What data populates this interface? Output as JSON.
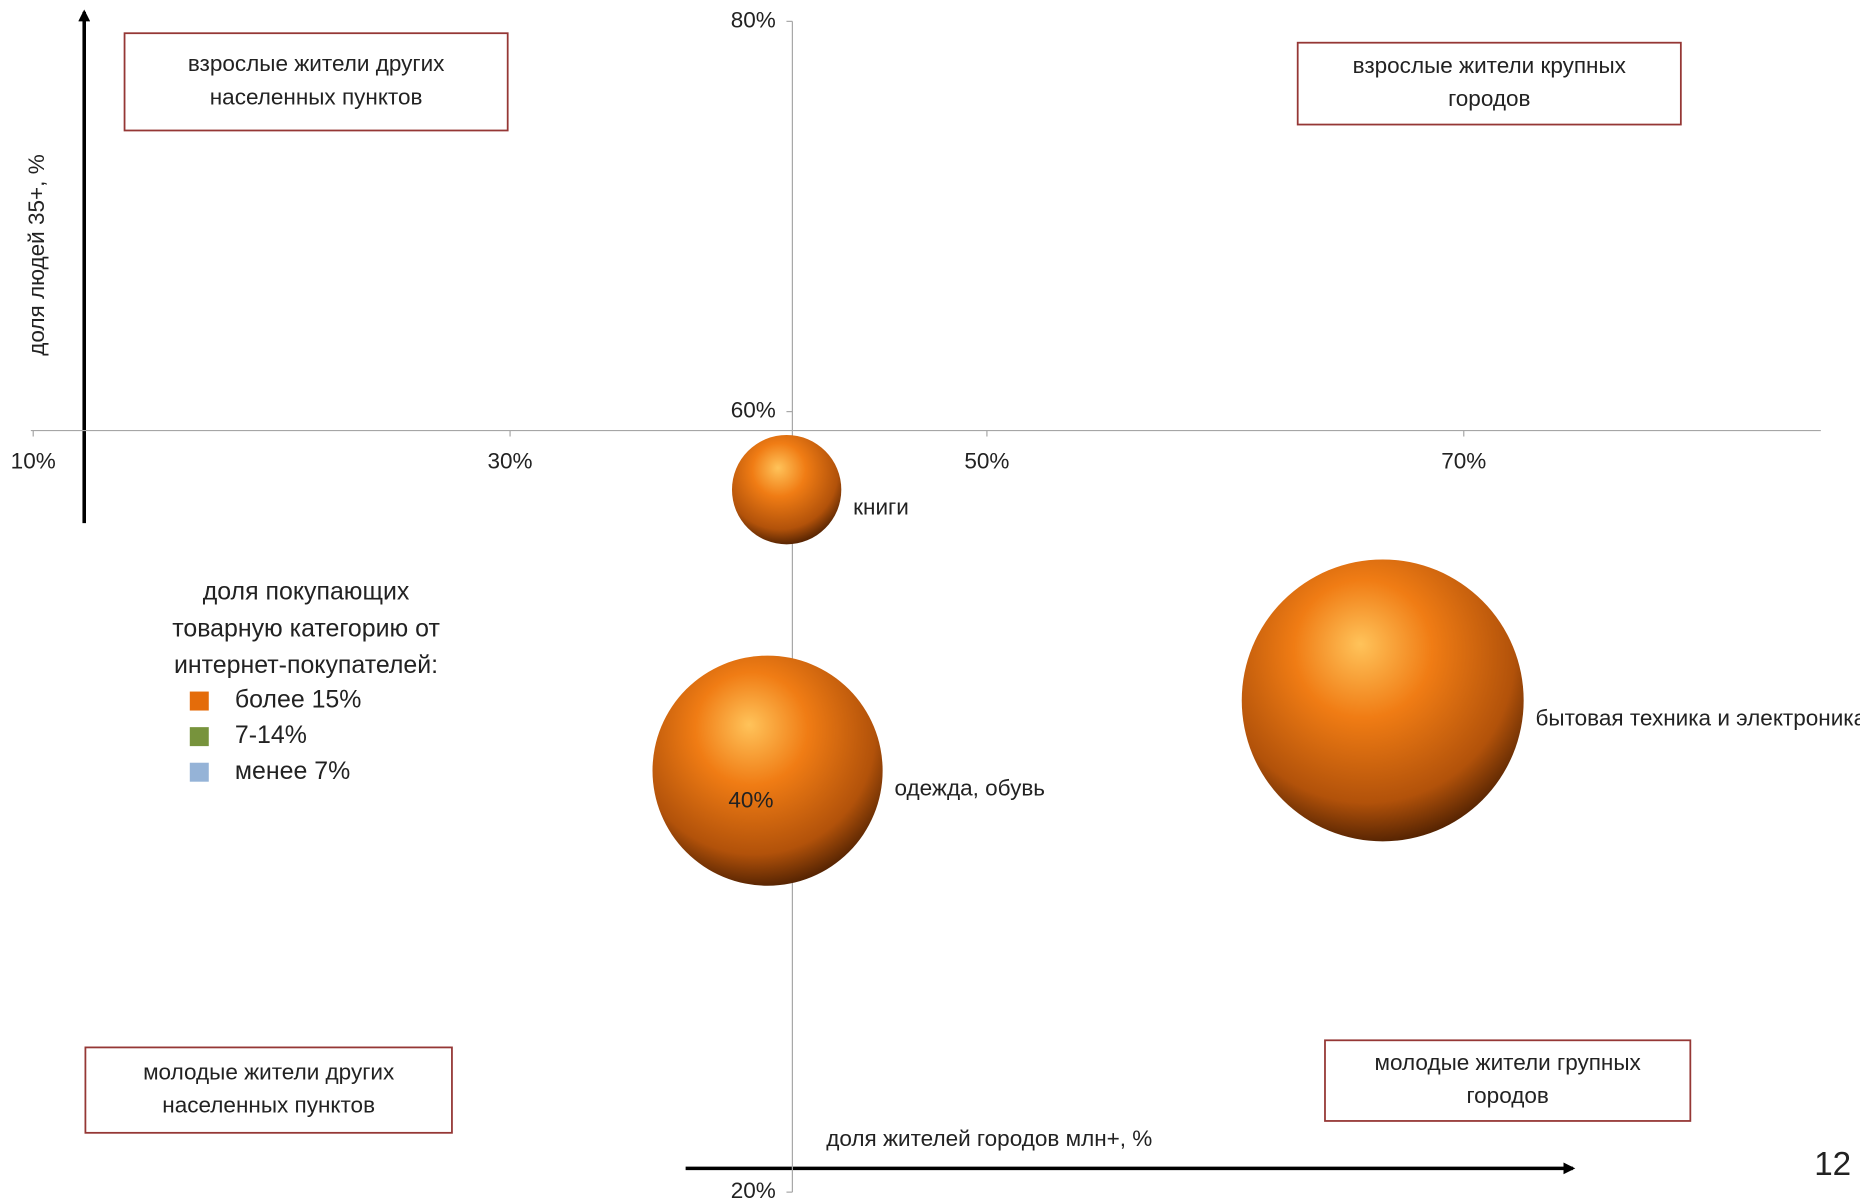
{
  "chart_data": {
    "type": "bubble",
    "x_label": "доля жителей городов млн+, %",
    "y_label": "доля людей 35+, %",
    "labels": [
      "книги",
      "одежда, обувь",
      "бытовая техника и электроника"
    ],
    "x": [
      41.6,
      40.8,
      66.6
    ],
    "values": [
      56,
      41.6,
      45.2
    ],
    "sizes": [
      19,
      40,
      49
    ],
    "size_labels": [
      null,
      "40%",
      null
    ],
    "color": "#e46c0a",
    "xlim": [
      10,
      85
    ],
    "ylim": [
      20,
      80
    ],
    "xticks": [
      {
        "value": 10,
        "label": "10%"
      },
      {
        "value": 30,
        "label": "30%"
      },
      {
        "value": 50,
        "label": "50%"
      },
      {
        "value": 70,
        "label": "70%"
      }
    ],
    "yticks": [
      {
        "value": 20,
        "label": "20%"
      },
      {
        "value": 60,
        "label": "60%"
      },
      {
        "value": 80,
        "label": "80%"
      }
    ],
    "legend_title": [
      "доля покупающих",
      "товарную категорию от",
      "интернет-покупателей:"
    ],
    "legend": [
      {
        "label": "более 15%",
        "color": "#e46c0a"
      },
      {
        "label": "7-14%",
        "color": "#77933c"
      },
      {
        "label": "менее 7%",
        "color": "#95b3d7"
      }
    ],
    "quadrants": [
      {
        "lines": [
          "взрослые жители других",
          "населенных пунктов"
        ]
      },
      {
        "lines": [
          "взрослые жители крупных",
          "городов"
        ]
      },
      {
        "lines": [
          "молодые жители других",
          "населенных пунктов"
        ]
      },
      {
        "lines": [
          "молодые жители групных",
          "городов"
        ]
      }
    ],
    "page_number": "12"
  }
}
